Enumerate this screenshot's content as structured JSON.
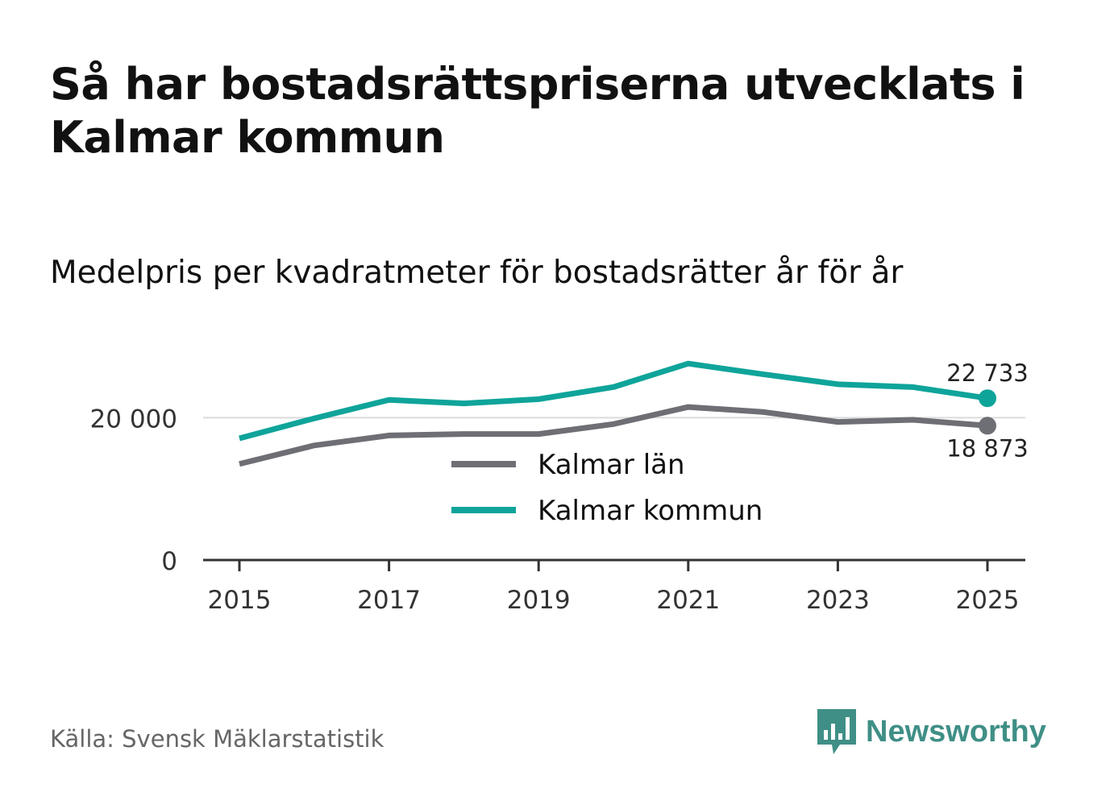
{
  "title": "Så har bostadsrättspriserna utvecklats i Kalmar kommun",
  "subtitle": "Medelpris per kvadratmeter för bostadsrätter år för år",
  "source": "Källa: Svensk Mäklarstatistik",
  "brand": {
    "name": "Newsworthy",
    "icon": "newsworthy-logo-icon",
    "color": "#3f8f86"
  },
  "chart_data": {
    "type": "line",
    "x": [
      2015,
      2016,
      2017,
      2018,
      2019,
      2020,
      2021,
      2022,
      2023,
      2024,
      2025
    ],
    "xticks": [
      "2015",
      "2017",
      "2019",
      "2021",
      "2023",
      "2025"
    ],
    "yticks": [
      {
        "value": 0,
        "label": "0"
      },
      {
        "value": 20000,
        "label": "20 000"
      }
    ],
    "ylim": [
      0,
      30000
    ],
    "grid": true,
    "legend_position": "center",
    "series": [
      {
        "name": "Kalmar län",
        "color": "#6e6e75",
        "values": [
          13500,
          16100,
          17500,
          17700,
          17700,
          19100,
          21500,
          20800,
          19400,
          19700,
          18873
        ],
        "end_label": "18 873",
        "end_label_position": "below"
      },
      {
        "name": "Kalmar kommun",
        "color": "#0fa49a",
        "values": [
          17100,
          19900,
          22500,
          22000,
          22600,
          24300,
          27600,
          26100,
          24700,
          24300,
          22733
        ],
        "end_label": "22 733",
        "end_label_position": "above"
      }
    ]
  }
}
